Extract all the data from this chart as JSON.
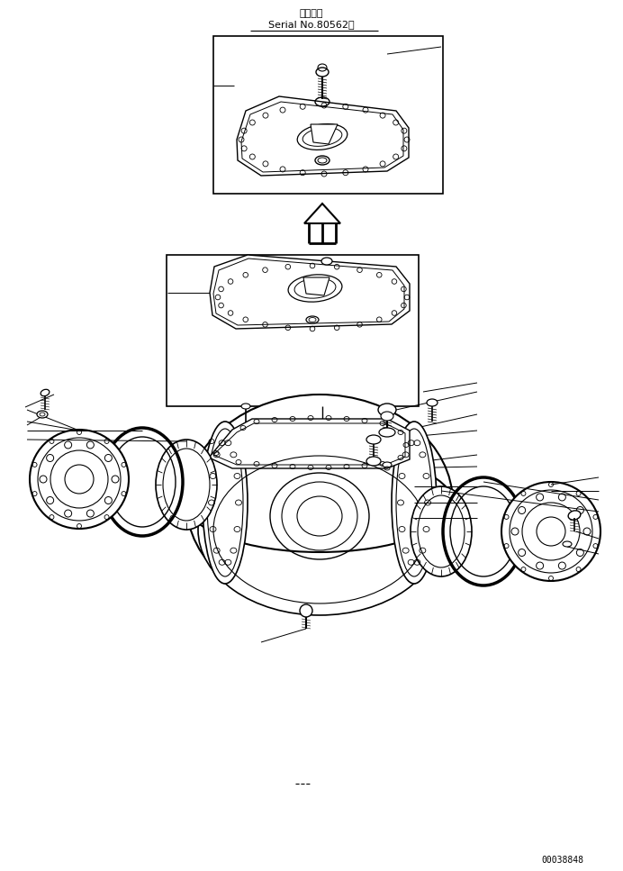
{
  "title_japanese": "適用号機",
  "title_serial": "Serial No.80562～",
  "part_number": "00038848",
  "bg_color": "#ffffff",
  "line_color": "#000000",
  "fig_width": 6.92,
  "fig_height": 9.67,
  "dpi": 100
}
